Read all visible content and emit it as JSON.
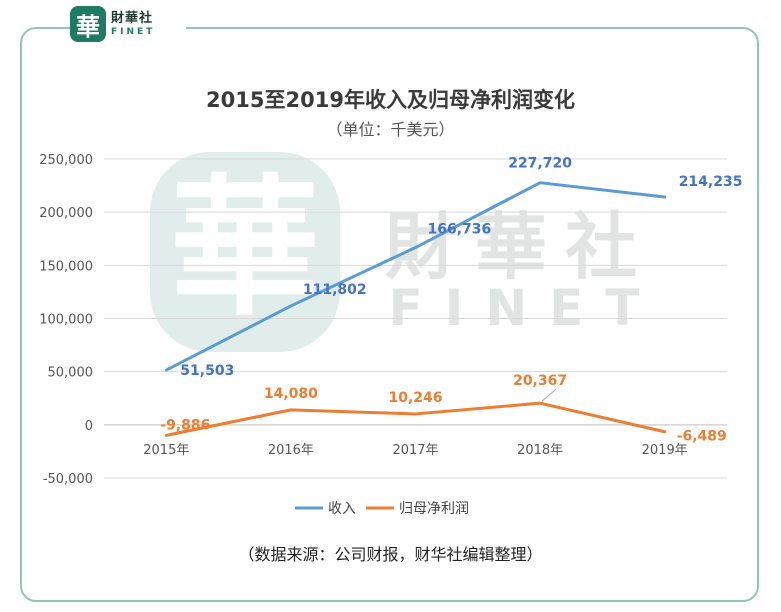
{
  "brand": {
    "badge_char": "華",
    "name_cn": "財華社",
    "name_en": "FINET"
  },
  "watermark": {
    "name_cn": "財華社",
    "name_en": "FINET",
    "badge_char": "華"
  },
  "chart_data": {
    "type": "line",
    "title": "2015至2019年收入及归母净利润变化",
    "subtitle": "（单位：千美元）",
    "categories": [
      "2015年",
      "2016年",
      "2017年",
      "2018年",
      "2019年"
    ],
    "ylim": [
      -50000,
      250000
    ],
    "yticks": [
      "250,000",
      "200,000",
      "150,000",
      "100,000",
      "50,000",
      "0",
      "-50,000"
    ],
    "ytick_values": [
      250000,
      200000,
      150000,
      100000,
      50000,
      0,
      -50000
    ],
    "grid": true,
    "legend_position": "bottom",
    "series": [
      {
        "name": "收入",
        "color": "#5b9bd5",
        "values": [
          51503,
          111802,
          166736,
          227720,
          214235
        ],
        "labels": [
          "51,503",
          "111,802",
          "166,736",
          "227,720",
          "214,235"
        ],
        "label_color": "#4472c4"
      },
      {
        "name": "归母净利润",
        "color": "#ed7d31",
        "values": [
          -9886,
          14080,
          10246,
          20367,
          -6489
        ],
        "labels": [
          "-9,886",
          "14,080",
          "10,246",
          "20,367",
          "-6,489"
        ],
        "label_color": "#ed7d31"
      }
    ]
  },
  "footer": {
    "source": "（数据来源：公司财报，财华社编辑整理）"
  }
}
